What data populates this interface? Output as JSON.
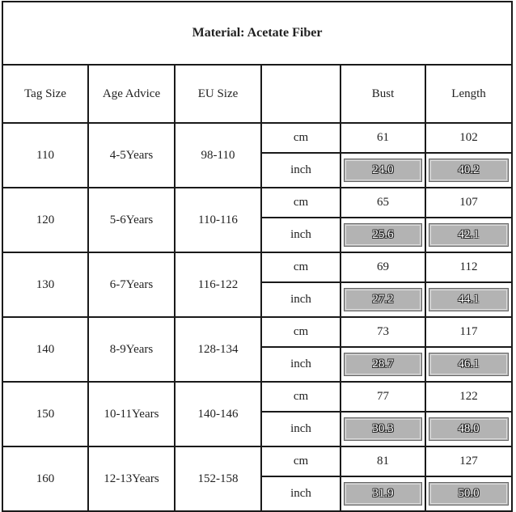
{
  "title": "Material: Acetate Fiber",
  "headers": [
    "Tag Size",
    "Age Advice",
    "EU Size",
    "",
    "Bust",
    "Length"
  ],
  "units": {
    "cm": "cm",
    "inch": "inch"
  },
  "rows": [
    {
      "tag": "110",
      "age": "4-5Years",
      "eu": "98-110",
      "bust_cm": "61",
      "length_cm": "102",
      "bust_inch": "24.0",
      "length_inch": "40.2"
    },
    {
      "tag": "120",
      "age": "5-6Years",
      "eu": "110-116",
      "bust_cm": "65",
      "length_cm": "107",
      "bust_inch": "25.6",
      "length_inch": "42.1"
    },
    {
      "tag": "130",
      "age": "6-7Years",
      "eu": "116-122",
      "bust_cm": "69",
      "length_cm": "112",
      "bust_inch": "27.2",
      "length_inch": "44.1"
    },
    {
      "tag": "140",
      "age": "8-9Years",
      "eu": "128-134",
      "bust_cm": "73",
      "length_cm": "117",
      "bust_inch": "28.7",
      "length_inch": "46.1"
    },
    {
      "tag": "150",
      "age": "10-11Years",
      "eu": "140-146",
      "bust_cm": "77",
      "length_cm": "122",
      "bust_inch": "30.3",
      "length_inch": "48.0"
    },
    {
      "tag": "160",
      "age": "12-13Years",
      "eu": "152-158",
      "bust_cm": "81",
      "length_cm": "127",
      "bust_inch": "31.9",
      "length_inch": "50.0"
    }
  ],
  "colors": {
    "inch_cell_bg": "#b3b3b3",
    "border": "#1a1a1a"
  }
}
